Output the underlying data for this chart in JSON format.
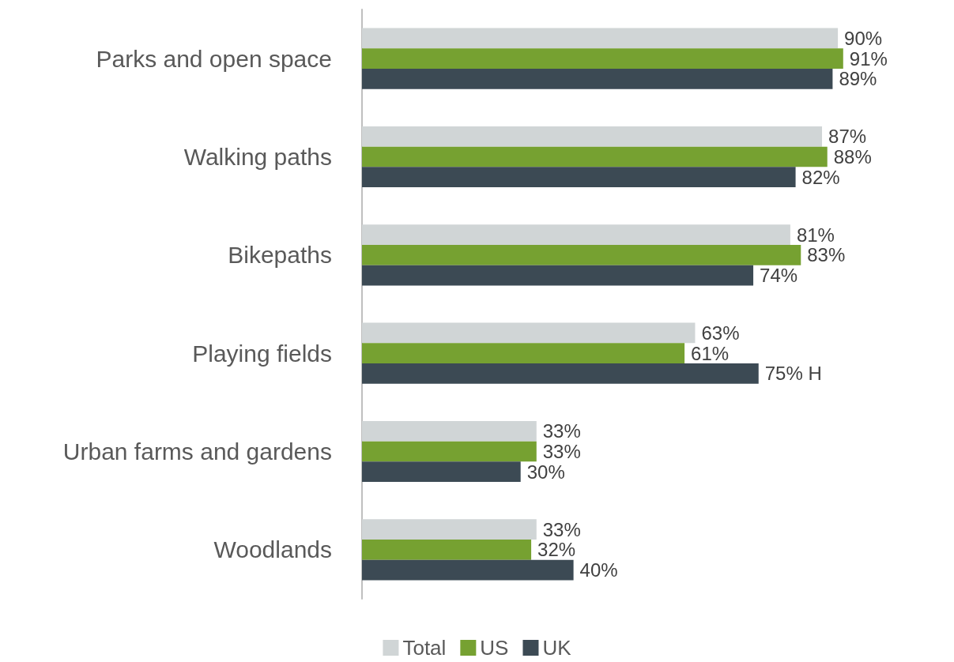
{
  "chart_data": {
    "type": "bar",
    "orientation": "horizontal",
    "categories": [
      "Parks and open space",
      "Walking paths",
      "Bikepaths",
      "Playing fields",
      "Urban farms and gardens",
      "Woodlands"
    ],
    "series": [
      {
        "name": "Total",
        "color": "#d0d5d6",
        "values": [
          90,
          87,
          81,
          63,
          33,
          33
        ],
        "value_labels": [
          "90%",
          "87%",
          "81%",
          "63%",
          "33%",
          "33%"
        ]
      },
      {
        "name": "US",
        "color": "#76a131",
        "values": [
          91,
          88,
          83,
          61,
          33,
          32
        ],
        "value_labels": [
          "91%",
          "88%",
          "83%",
          "61%",
          "33%",
          "32%"
        ]
      },
      {
        "name": "UK",
        "color": "#3c4a54",
        "values": [
          89,
          82,
          74,
          75,
          30,
          40
        ],
        "value_labels": [
          "89%",
          "82%",
          "74%",
          "75% H",
          "30%",
          "40%"
        ]
      }
    ],
    "legend": "bottom",
    "grid": false
  }
}
